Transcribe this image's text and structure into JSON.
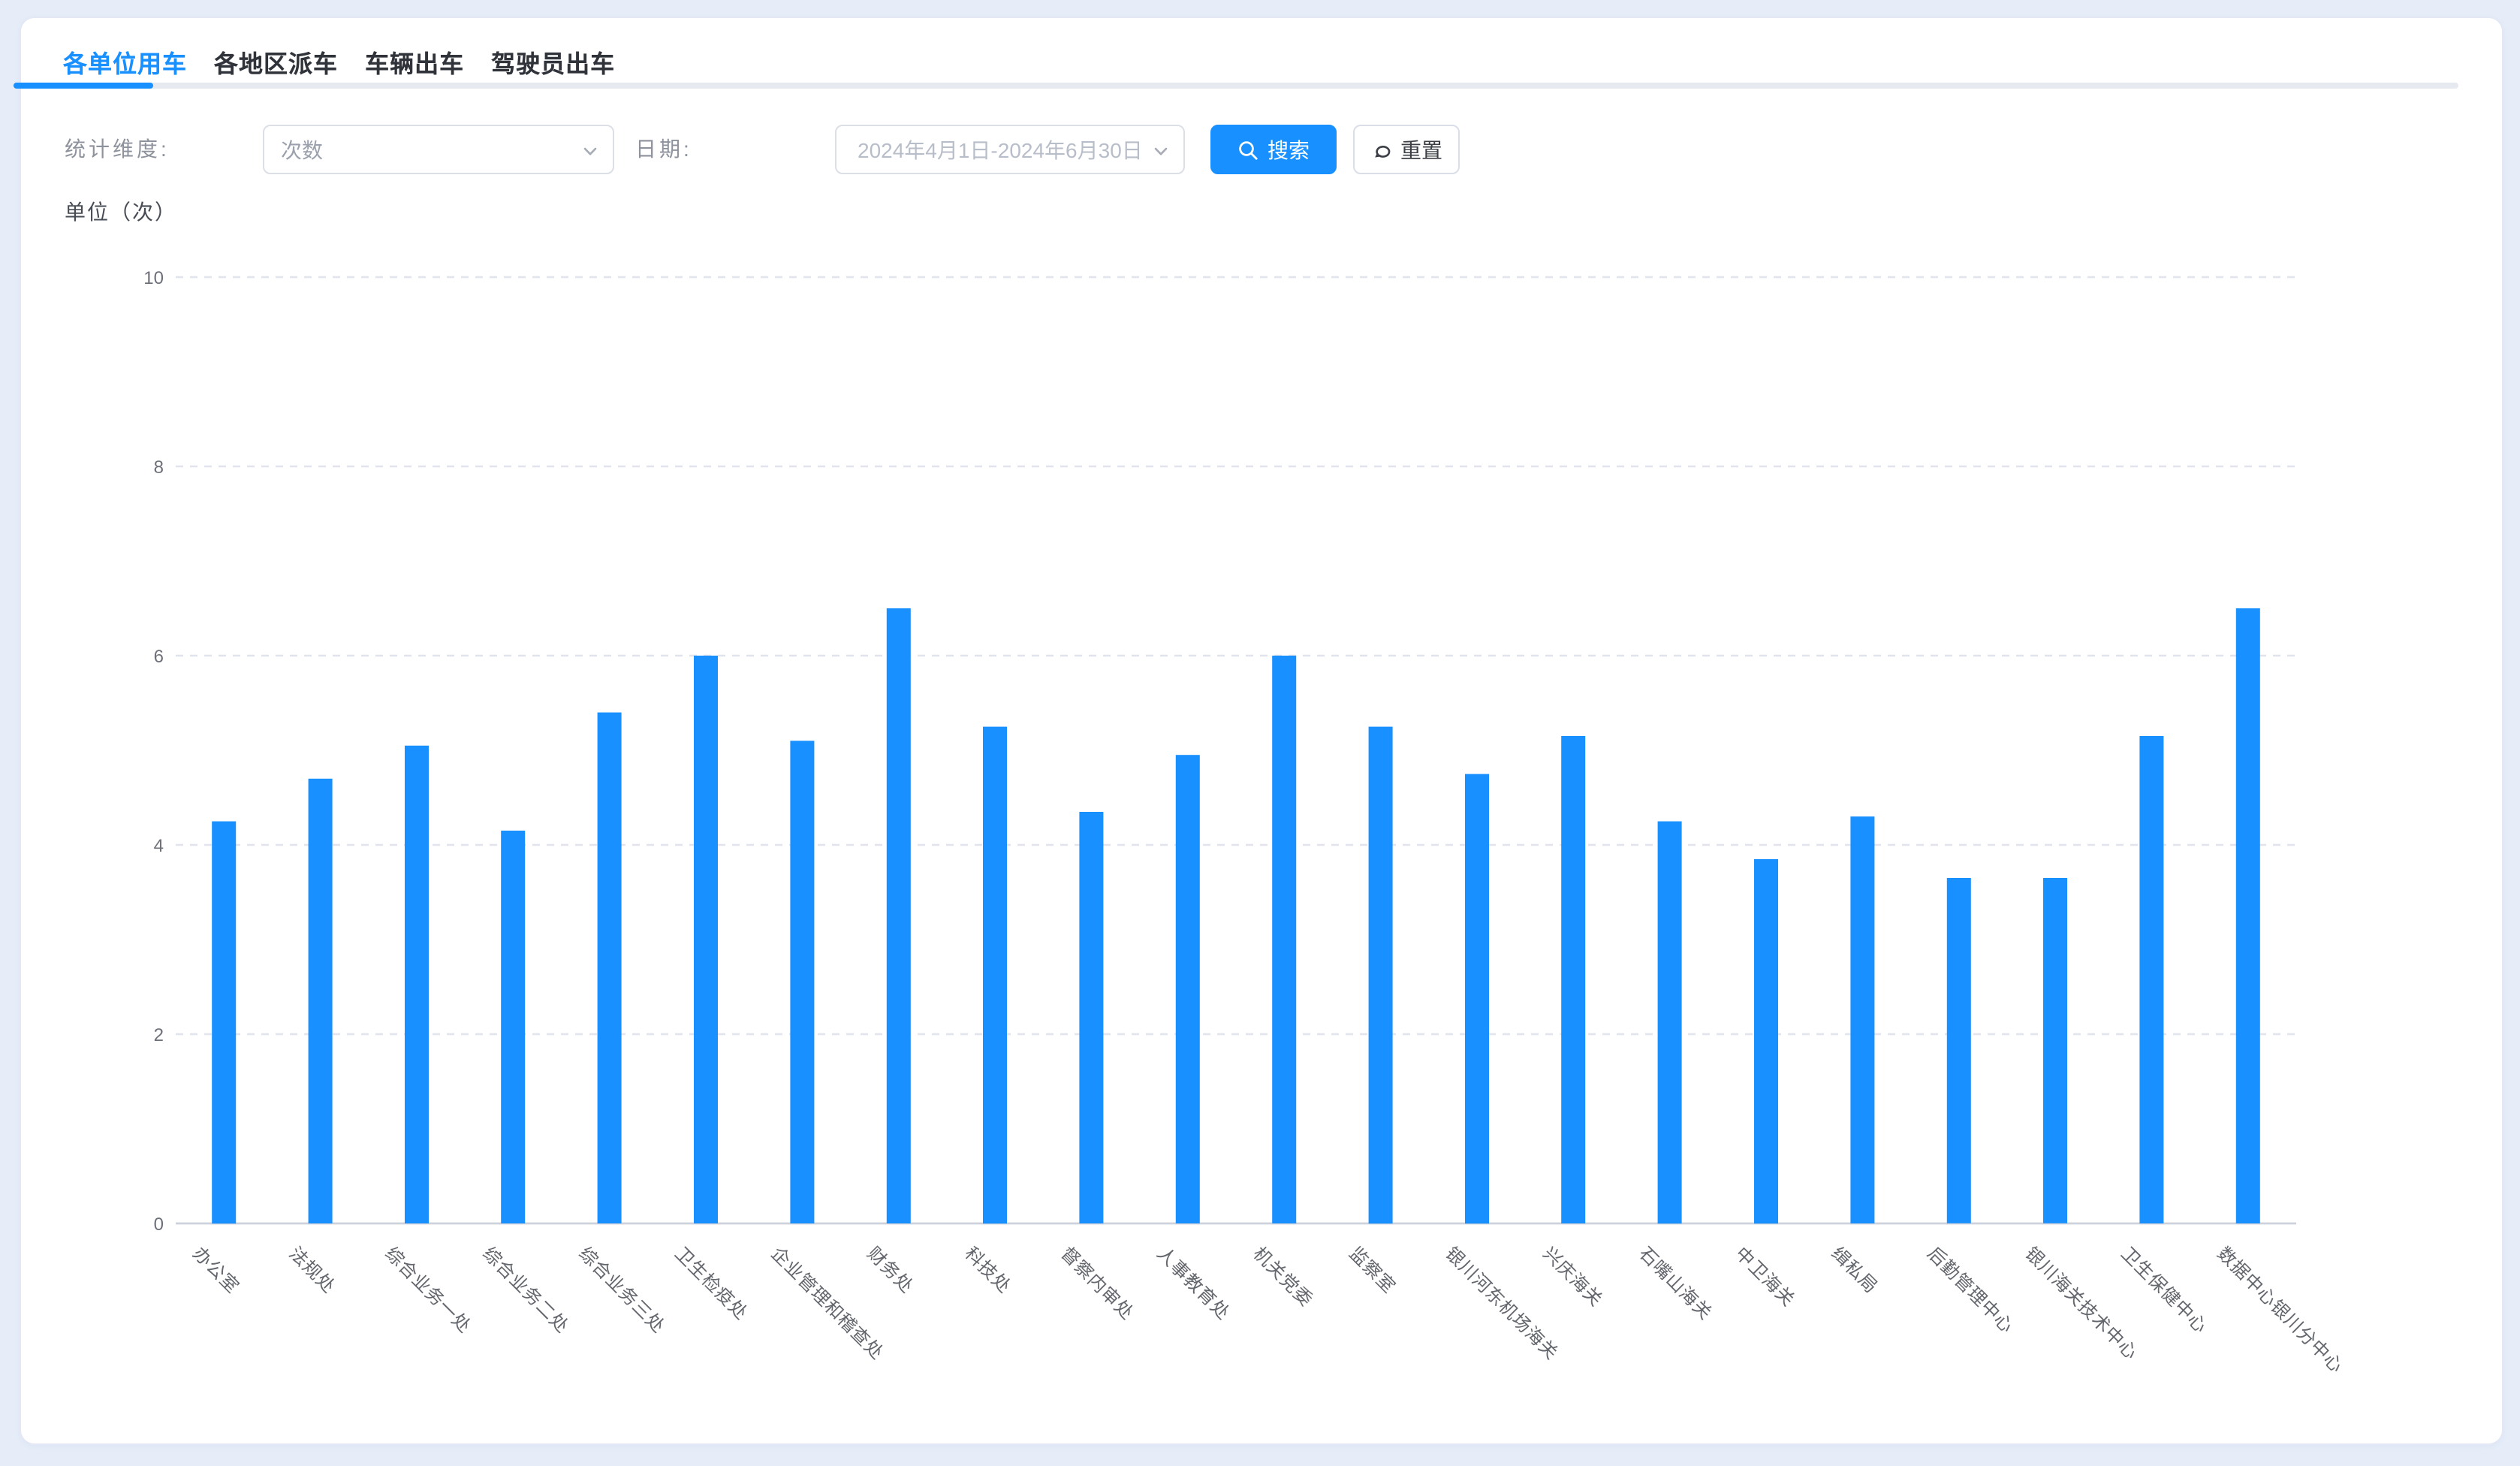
{
  "page": {
    "background": "#e6edf9"
  },
  "colors": {
    "primary": "#1890ff",
    "bar": "#1890ff",
    "grid_line": "#e1e4ec",
    "axis_line": "#ccd1db",
    "tick_label": "#6e7079",
    "x_label": "#63666c",
    "divider": "#e6e9f0",
    "label_gray": "#8d929c",
    "placeholder_gray": "#9ba1ac",
    "date_text_gray": "#b8bec9"
  },
  "tabs": [
    {
      "label": "各单位用车",
      "active": true
    },
    {
      "label": "各地区派车",
      "active": false
    },
    {
      "label": "车辆出车",
      "active": false
    },
    {
      "label": "驾驶员出车",
      "active": false
    }
  ],
  "filters": {
    "dimension_label": "统计维度:",
    "dimension_value": "次数",
    "date_label": "日期:",
    "date_value": "2024年4月1日-2024年6月30日",
    "search_label": "搜索",
    "reset_label": "重置"
  },
  "icons": {
    "search": "magnifier-icon",
    "reset": "reset-arrow-icon",
    "dropdown": "chevron-down-icon"
  },
  "chart_data": {
    "type": "bar",
    "title": "单位（次）",
    "categories": [
      "办公室",
      "法规处",
      "综合业务一处",
      "综合业务二处",
      "综合业务三处",
      "卫生检疫处",
      "企业管理和稽查处",
      "财务处",
      "科技处",
      "督察内审处",
      "人事教育处",
      "机关党委",
      "监察室",
      "银川河东机场海关",
      "兴庆海关",
      "石嘴山海关",
      "中卫海关",
      "缉私局",
      "后勤管理中心",
      "银川海关技术中心",
      "卫生保健中心",
      "数据中心银川分中心"
    ],
    "values": [
      4.25,
      4.7,
      5.05,
      4.15,
      5.4,
      6.0,
      5.1,
      6.5,
      5.25,
      4.35,
      4.95,
      6.0,
      5.25,
      4.75,
      5.15,
      4.25,
      3.85,
      4.3,
      3.65,
      3.65,
      5.15,
      6.5
    ],
    "ylim": [
      0,
      10
    ],
    "yticks": [
      0,
      2,
      4,
      6,
      8,
      10
    ],
    "xlabel": "",
    "ylabel": "单位（次）",
    "grid": "horizontal-dashed",
    "legend": "none",
    "bar_color": "#1890ff",
    "x_label_rotation": 45
  }
}
